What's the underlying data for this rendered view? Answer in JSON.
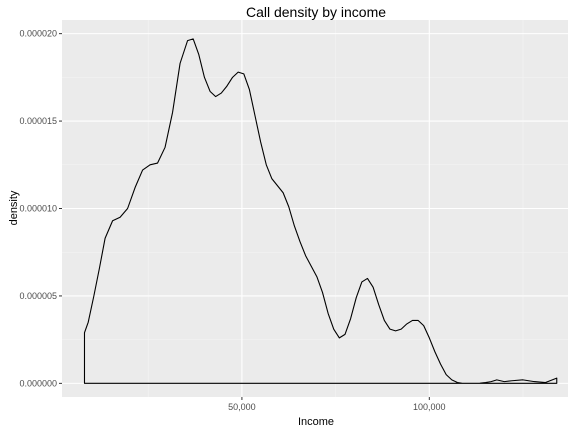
{
  "chart_data": {
    "type": "area",
    "title": "Call density by income",
    "xlabel": "Income",
    "ylabel": "density",
    "xlim": [
      2000,
      137000
    ],
    "ylim": [
      -7.8e-07,
      2.078e-05
    ],
    "x_ticks": [
      {
        "value": 50000,
        "label": "50,000"
      },
      {
        "value": 100000,
        "label": "100,000"
      }
    ],
    "y_ticks": [
      {
        "value": 0,
        "label": "0.000000"
      },
      {
        "value": 5e-06,
        "label": "0.000005"
      },
      {
        "value": 1e-05,
        "label": "0.000010"
      },
      {
        "value": 1.5e-05,
        "label": "0.000015"
      },
      {
        "value": 2e-05,
        "label": "0.000020"
      }
    ],
    "grid": true,
    "legend": "none",
    "background": "#ebebeb",
    "line_color": "#000000",
    "series": [
      {
        "x": [
          8000,
          8000,
          9000,
          10500,
          12000,
          13500,
          15500,
          17500,
          19500,
          21500,
          23500,
          25500,
          27500,
          29500,
          31500,
          33500,
          35500,
          37000,
          38500,
          40000,
          41500,
          43000,
          44500,
          46000,
          47500,
          49000,
          50500,
          52000,
          53500,
          55000,
          56500,
          58000,
          59500,
          61000,
          62500,
          64000,
          65500,
          67000,
          68500,
          70000,
          71500,
          73000,
          74500,
          76000,
          77500,
          79000,
          80500,
          82000,
          83500,
          85000,
          86500,
          88000,
          89500,
          91000,
          92500,
          94000,
          95500,
          97000,
          98500,
          100000,
          101500,
          103000,
          104500,
          106000,
          107500,
          109000,
          110500,
          112000,
          113500,
          115000,
          116500,
          118000,
          120000,
          122000,
          125000,
          128000,
          131000,
          134000
        ],
        "y": [
          0,
          2.9e-06,
          3.5e-06,
          5e-06,
          6.6e-06,
          8.3e-06,
          9.3e-06,
          9.5e-06,
          1e-05,
          1.12e-05,
          1.22e-05,
          1.25e-05,
          1.26e-05,
          1.35e-05,
          1.55e-05,
          1.83e-05,
          1.96e-05,
          1.97e-05,
          1.88e-05,
          1.75e-05,
          1.67e-05,
          1.64e-05,
          1.66e-05,
          1.7e-05,
          1.75e-05,
          1.78e-05,
          1.77e-05,
          1.68e-05,
          1.53e-05,
          1.38e-05,
          1.25e-05,
          1.17e-05,
          1.13e-05,
          1.09e-05,
          1.01e-05,
          9e-06,
          8.1e-06,
          7.3e-06,
          6.7e-06,
          6.1e-06,
          5.2e-06,
          4e-06,
          3.1e-06,
          2.6e-06,
          2.8e-06,
          3.7e-06,
          4.9e-06,
          5.8e-06,
          6e-06,
          5.5e-06,
          4.5e-06,
          3.6e-06,
          3.1e-06,
          3e-06,
          3.1e-06,
          3.4e-06,
          3.6e-06,
          3.6e-06,
          3.3e-06,
          2.6e-06,
          1.8e-06,
          1.1e-06,
          5e-07,
          2e-07,
          5e-08,
          0.0,
          0.0,
          0.0,
          1e-08,
          5e-08,
          1e-07,
          2e-07,
          1e-07,
          1.5e-07,
          2e-07,
          1e-07,
          5e-08,
          3e-07
        ]
      }
    ]
  }
}
